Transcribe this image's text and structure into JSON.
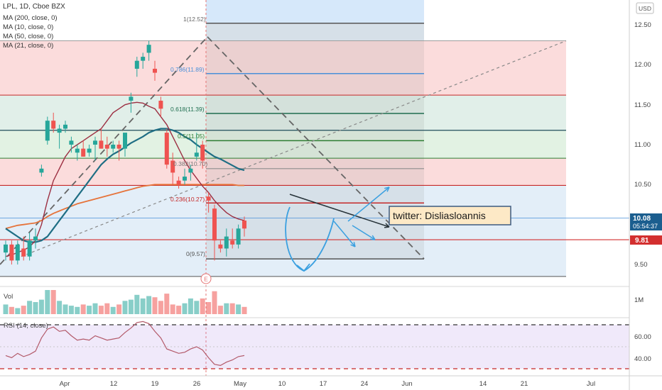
{
  "header": {
    "title": "LPL, 1D, Cboe BZX",
    "indicators": [
      "MA (200, close, 0)",
      "MA (10, close, 0)",
      "MA (50, close, 0)",
      "MA (21, close, 0)"
    ]
  },
  "currency_badge": "USD",
  "price_axis": {
    "ticks": [
      "12.50",
      "12.00",
      "11.50",
      "11.00",
      "10.50",
      "9.50"
    ],
    "current_price": "10.08",
    "countdown": "05:54:37",
    "level_label": "9.81"
  },
  "volume_pane": {
    "label": "Vol",
    "axis_tick": "1M"
  },
  "rsi_pane": {
    "label": "RSI (14, close)",
    "ticks": [
      "60.00",
      "40.00"
    ]
  },
  "time_axis": {
    "ticks": [
      "Apr",
      "12",
      "19",
      "26",
      "May",
      "10",
      "17",
      "24",
      "Jun",
      "14",
      "21",
      "Jul"
    ]
  },
  "fib_levels": [
    "1(12.52)",
    "0.786(11.89)",
    "0.618(11.39)",
    "0.5(11.05)",
    "0.382(10.70)",
    "0.236(10.27)",
    "0(9.57)"
  ],
  "earnings_marker": "E",
  "annotation": "twitter: Disliasloannis",
  "colors": {
    "up": "#26a69a",
    "down": "#ef5350",
    "ma_red": "#9c2f42",
    "ma_teal": "#1f6e84",
    "ma_orange": "#e6733a",
    "price_badge": "#1b5e8f",
    "level_red": "#d32f2f"
  },
  "chart_data": [
    {
      "type": "candlestick",
      "title": "LPL, 1D, Cboe BZX",
      "ylim": [
        9.2,
        12.8
      ],
      "x": [
        "Mar 25",
        "Mar 26",
        "Mar 29",
        "Mar 30",
        "Mar 31",
        "Apr 1",
        "Apr 5",
        "Apr 6",
        "Apr 7",
        "Apr 8",
        "Apr 9",
        "Apr 12",
        "Apr 13",
        "Apr 14",
        "Apr 15",
        "Apr 16",
        "Apr 19",
        "Apr 20",
        "Apr 21",
        "Apr 22",
        "Apr 23",
        "Apr 26",
        "Apr 27",
        "Apr 28",
        "Apr 29",
        "Apr 30",
        "May 3",
        "May 4",
        "May 5",
        "May 6",
        "May 7",
        "May 10",
        "May 11",
        "May 12",
        "May 13",
        "May 14",
        "May 17",
        "May 18",
        "May 19",
        "May 20",
        "May 21"
      ],
      "ohlc": [
        [
          9.65,
          9.8,
          9.55,
          9.75
        ],
        [
          9.75,
          9.8,
          9.5,
          9.55
        ],
        [
          9.55,
          9.8,
          9.5,
          9.75
        ],
        [
          9.7,
          9.85,
          9.55,
          9.6
        ],
        [
          9.6,
          9.9,
          9.55,
          9.8
        ],
        [
          9.8,
          9.95,
          9.7,
          9.85
        ],
        [
          10.65,
          10.75,
          10.6,
          10.7
        ],
        [
          11.05,
          11.35,
          11.0,
          11.3
        ],
        [
          11.3,
          11.4,
          11.15,
          11.2
        ],
        [
          11.15,
          11.25,
          10.95,
          11.2
        ],
        [
          11.2,
          11.3,
          11.15,
          11.25
        ],
        [
          11.0,
          11.1,
          10.9,
          11.05
        ],
        [
          10.9,
          11.0,
          10.8,
          10.95
        ],
        [
          10.95,
          11.05,
          10.85,
          10.85
        ],
        [
          10.9,
          11.0,
          10.85,
          10.95
        ],
        [
          11.0,
          11.1,
          10.8,
          11.05
        ],
        [
          11.05,
          11.2,
          10.95,
          10.95
        ],
        [
          11.0,
          11.1,
          10.85,
          10.95
        ],
        [
          10.95,
          11.05,
          10.9,
          11.0
        ],
        [
          11.0,
          11.05,
          10.8,
          10.95
        ],
        [
          10.95,
          11.15,
          10.85,
          11.15
        ],
        [
          11.55,
          11.65,
          11.4,
          11.6
        ],
        [
          11.95,
          12.1,
          11.85,
          12.05
        ],
        [
          12.05,
          12.15,
          11.95,
          12.1
        ],
        [
          12.15,
          12.3,
          12.05,
          12.25
        ],
        [
          11.95,
          12.05,
          11.8,
          11.9
        ],
        [
          11.55,
          11.6,
          11.35,
          11.45
        ],
        [
          11.15,
          11.2,
          10.7,
          10.75
        ],
        [
          10.8,
          10.9,
          10.5,
          10.65
        ],
        [
          10.55,
          10.6,
          10.45,
          10.5
        ],
        [
          10.55,
          10.7,
          10.5,
          10.6
        ],
        [
          10.65,
          10.75,
          10.55,
          10.7
        ],
        [
          10.85,
          11.15,
          10.8,
          10.9
        ],
        [
          11.0,
          11.05,
          10.7,
          10.8
        ],
        [
          10.35,
          10.4,
          10.15,
          10.3
        ],
        [
          10.2,
          10.25,
          9.55,
          9.8
        ],
        [
          9.75,
          9.8,
          9.65,
          9.7
        ],
        [
          9.7,
          9.95,
          9.6,
          9.85
        ],
        [
          9.8,
          9.95,
          9.7,
          9.75
        ],
        [
          9.75,
          10.0,
          9.7,
          9.95
        ],
        [
          10.05,
          10.1,
          9.85,
          9.95
        ]
      ],
      "moving_averages": [
        {
          "name": "MA (200, close, 0)",
          "values": [
            9.95,
            9.97,
            9.99,
            10.0,
            10.01,
            10.02,
            10.05,
            10.1,
            10.14,
            10.17,
            10.2,
            10.23,
            10.26,
            10.28,
            10.3,
            10.32,
            10.34,
            10.36,
            10.38,
            10.4,
            10.42,
            10.44,
            10.46,
            10.48,
            10.49,
            10.5,
            10.5,
            10.5,
            10.5,
            10.5,
            10.5,
            10.5,
            10.5,
            10.5,
            10.5,
            10.5,
            10.5,
            10.5,
            10.5,
            10.49,
            10.49
          ]
        },
        {
          "name": "MA (50, close, 0)",
          "values": [
            9.95,
            9.9,
            9.85,
            9.8,
            9.78,
            9.78,
            9.8,
            9.85,
            9.95,
            10.05,
            10.15,
            10.25,
            10.35,
            10.45,
            10.55,
            10.65,
            10.75,
            10.82,
            10.88,
            10.92,
            10.97,
            11.02,
            11.06,
            11.1,
            11.15,
            11.18,
            11.2,
            11.2,
            11.18,
            11.15,
            11.1,
            11.06,
            11.0,
            10.95,
            10.9,
            10.85,
            10.82,
            10.78,
            10.74,
            10.7,
            10.68
          ]
        },
        {
          "name": "MA (10, close, 0)",
          "values": [
            9.6,
            9.62,
            9.65,
            9.68,
            9.72,
            9.8,
            10.0,
            10.3,
            10.55,
            10.7,
            10.85,
            10.95,
            11.0,
            11.05,
            11.1,
            11.15,
            11.2,
            11.3,
            11.4,
            11.45,
            11.5,
            11.52,
            11.53,
            11.52,
            11.48,
            11.45,
            11.35,
            11.25,
            11.1,
            10.95,
            10.8,
            10.68,
            10.58,
            10.48,
            10.4,
            10.3,
            10.22,
            10.15,
            10.1,
            10.07,
            10.05
          ]
        }
      ]
    },
    {
      "type": "bar",
      "title": "Vol",
      "categories": [
        "Mar 25",
        "Mar 26",
        "Mar 29",
        "Mar 30",
        "Mar 31",
        "Apr 1",
        "Apr 5",
        "Apr 6",
        "Apr 7",
        "Apr 8",
        "Apr 9",
        "Apr 12",
        "Apr 13",
        "Apr 14",
        "Apr 15",
        "Apr 16",
        "Apr 19",
        "Apr 20",
        "Apr 21",
        "Apr 22",
        "Apr 23",
        "Apr 26",
        "Apr 27",
        "Apr 28",
        "Apr 29",
        "Apr 30",
        "May 3",
        "May 4",
        "May 5",
        "May 6",
        "May 7",
        "May 10",
        "May 11",
        "May 12",
        "May 13",
        "May 14",
        "May 17",
        "May 18",
        "May 19",
        "May 20",
        "May 21"
      ],
      "values": [
        0.4,
        0.3,
        0.25,
        0.35,
        0.55,
        0.5,
        0.6,
        1.0,
        1.0,
        0.55,
        0.4,
        0.35,
        0.3,
        0.4,
        0.35,
        0.45,
        0.35,
        0.45,
        0.3,
        0.4,
        0.55,
        0.6,
        0.8,
        0.65,
        0.75,
        0.7,
        0.55,
        0.85,
        0.4,
        0.35,
        0.45,
        0.65,
        0.55,
        0.65,
        0.5,
        0.95,
        0.35,
        0.45,
        0.45,
        0.4,
        0.3
      ]
    },
    {
      "type": "line",
      "title": "RSI (14, close)",
      "ylim": [
        25,
        75
      ],
      "x": [
        "Mar 25",
        "Mar 26",
        "Mar 29",
        "Mar 30",
        "Mar 31",
        "Apr 1",
        "Apr 5",
        "Apr 6",
        "Apr 7",
        "Apr 8",
        "Apr 9",
        "Apr 12",
        "Apr 13",
        "Apr 14",
        "Apr 15",
        "Apr 16",
        "Apr 19",
        "Apr 20",
        "Apr 21",
        "Apr 22",
        "Apr 23",
        "Apr 26",
        "Apr 27",
        "Apr 28",
        "Apr 29",
        "Apr 30",
        "May 3",
        "May 4",
        "May 5",
        "May 6",
        "May 7",
        "May 10",
        "May 11",
        "May 12",
        "May 13",
        "May 14",
        "May 17",
        "May 18",
        "May 19",
        "May 20",
        "May 21"
      ],
      "values": [
        42,
        40,
        44,
        41,
        43,
        46,
        58,
        66,
        68,
        64,
        65,
        60,
        56,
        57,
        56,
        60,
        58,
        56,
        57,
        58,
        63,
        67,
        72,
        73,
        71,
        64,
        58,
        48,
        46,
        44,
        45,
        48,
        50,
        47,
        40,
        34,
        33,
        36,
        38,
        41,
        42
      ]
    }
  ]
}
